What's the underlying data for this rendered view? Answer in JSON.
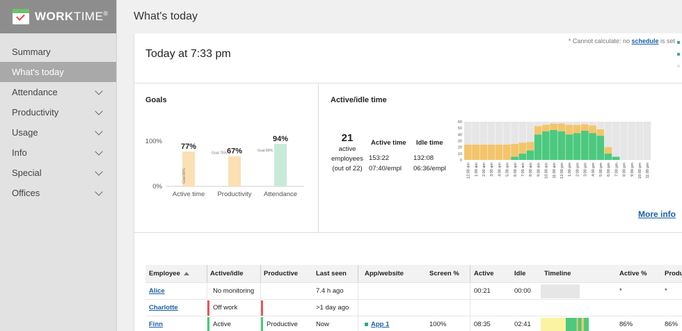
{
  "app": {
    "brand_bold": "WORK",
    "brand_light": "TIME",
    "brand_mark": "®"
  },
  "sidebar": {
    "items": [
      {
        "label": "Summary",
        "expandable": false,
        "active": false
      },
      {
        "label": "What's today",
        "expandable": false,
        "active": true
      },
      {
        "label": "Attendance",
        "expandable": true,
        "active": false
      },
      {
        "label": "Productivity",
        "expandable": true,
        "active": false
      },
      {
        "label": "Usage",
        "expandable": true,
        "active": false
      },
      {
        "label": "Info",
        "expandable": true,
        "active": false
      },
      {
        "label": "Special",
        "expandable": true,
        "active": false
      },
      {
        "label": "Offices",
        "expandable": true,
        "active": false
      }
    ]
  },
  "header": {
    "title": "What's today"
  },
  "main": {
    "today_heading": "Today at 7:33 pm",
    "note_prefix": "* Cannot calculate: no ",
    "note_link": "schedule",
    "note_suffix": " is set",
    "note_marks": [
      "#3cb371",
      "#3cb371",
      "#d9eee0"
    ]
  },
  "goals": {
    "title": "Goals",
    "y_ticks": [
      "100%",
      "0%"
    ],
    "bars": [
      {
        "label": "Active time",
        "value": 77,
        "value_label": "77%",
        "goal": 80,
        "goal_label": "Goal 80%",
        "color": "#fbe0b3"
      },
      {
        "label": "Productivity",
        "value": 67,
        "value_label": "67%",
        "goal": 75,
        "goal_label": "Goal 75%",
        "color": "#fbe0b3"
      },
      {
        "label": "Attendance",
        "value": 94,
        "value_label": "94%",
        "goal": 80,
        "goal_label": "Goal 80%",
        "color": "#c9ead8"
      }
    ]
  },
  "active_idle": {
    "title": "Active/idle time",
    "employees_count": "21",
    "employees_line1": "active",
    "employees_line2": "employees",
    "employees_line3": "(out of 22)",
    "active_head": "Active time",
    "idle_head": "Idle time",
    "active_total": "153:22",
    "idle_total": "132:08",
    "active_per": "07:40/empl",
    "idle_per": "06:36/empl",
    "more_info": "More info"
  },
  "chart_data": {
    "type": "bar",
    "stacked": true,
    "ylim": [
      0,
      60
    ],
    "y_ticks": [
      "0",
      "10",
      "20",
      "30",
      "40",
      "50",
      "60"
    ],
    "categories": [
      "12:00 am",
      "1:00 am",
      "2:00 am",
      "3:00 am",
      "4:00 am",
      "5:00 am",
      "6:00 am",
      "7:00 am",
      "8:00 am",
      "9:00 am",
      "10:00 am",
      "11:00 am",
      "12:00 pm",
      "1:00 pm",
      "2:00 pm",
      "3:00 pm",
      "4:00 pm",
      "5:00 pm",
      "6:00 pm",
      "7:00 pm",
      "8:00 pm",
      "9:00 pm",
      "10:00 pm",
      "11:00 pm"
    ],
    "series": [
      {
        "values": [
          0,
          0,
          0,
          0,
          0,
          0,
          5,
          10,
          15,
          40,
          45,
          47,
          45,
          40,
          42,
          46,
          42,
          38,
          10,
          5,
          0,
          0,
          0,
          0
        ],
        "color": "#4cc97f"
      },
      {
        "values": [
          24,
          24,
          24,
          24,
          24,
          24,
          20,
          17,
          13,
          13,
          10,
          10,
          12,
          15,
          13,
          10,
          12,
          10,
          10,
          0,
          0,
          0,
          0,
          0
        ],
        "color": "#f3c56b"
      }
    ],
    "background_color": "#e6e6e6",
    "grid": false
  },
  "table": {
    "headers": [
      "Employee",
      "Active/idle",
      "Productive",
      "Last seen",
      "App/website",
      "Screen %",
      "Active",
      "Idle",
      "Timeline",
      "Active %",
      "Produ"
    ],
    "rows": [
      {
        "employee": "Alice",
        "active_idle": "No monitoring",
        "productive": "",
        "last_seen": "7.4 h ago",
        "app": "",
        "screen": "",
        "active": "00:21",
        "idle": "00:00",
        "active_pct": "*",
        "prod": "*",
        "status_color": "",
        "prod_color": ""
      },
      {
        "employee": "Charlotte",
        "active_idle": "Off work",
        "productive": "",
        "last_seen": ">1 day ago",
        "app": "",
        "screen": "",
        "active": "",
        "idle": "",
        "active_pct": "",
        "prod": "",
        "status_color": "#e05a5a",
        "prod_color": "#e05a5a"
      },
      {
        "employee": "Finn",
        "active_idle": "Active",
        "productive": "Productive",
        "last_seen": "Now",
        "app": "App 1",
        "screen": "100%",
        "active": "08:35",
        "idle": "02:41",
        "active_pct": "86%",
        "prod": "86%",
        "status_color": "#4cc97f",
        "prod_color": "#4cc97f"
      }
    ]
  }
}
